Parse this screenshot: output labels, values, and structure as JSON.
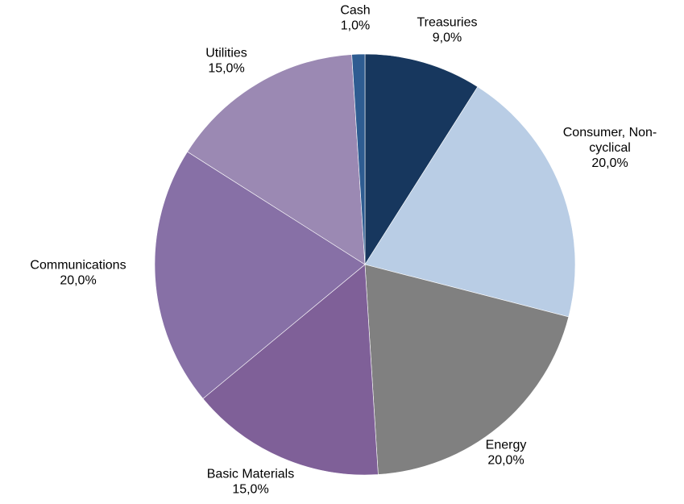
{
  "chart_data": {
    "type": "pie",
    "slices": [
      {
        "label": [
          "Treasuries"
        ],
        "value": 9.0,
        "value_label": "9,0%",
        "color": "#17375e"
      },
      {
        "label": [
          "Consumer, Non-",
          "cyclical"
        ],
        "value": 20.0,
        "value_label": "20,0%",
        "color": "#b9cde5"
      },
      {
        "label": [
          "Energy"
        ],
        "value": 20.0,
        "value_label": "20,0%",
        "color": "#808080"
      },
      {
        "label": [
          "Basic Materials"
        ],
        "value": 15.0,
        "value_label": "15,0%",
        "color": "#7f6098"
      },
      {
        "label": [
          "Communications"
        ],
        "value": 20.0,
        "value_label": "20,0%",
        "color": "#8770a6"
      },
      {
        "label": [
          "Utilities"
        ],
        "value": 15.0,
        "value_label": "15,0%",
        "color": "#9b89b3"
      },
      {
        "label": [
          "Cash"
        ],
        "value": 1.0,
        "value_label": "1,0%",
        "color": "#2e5c91"
      }
    ]
  }
}
